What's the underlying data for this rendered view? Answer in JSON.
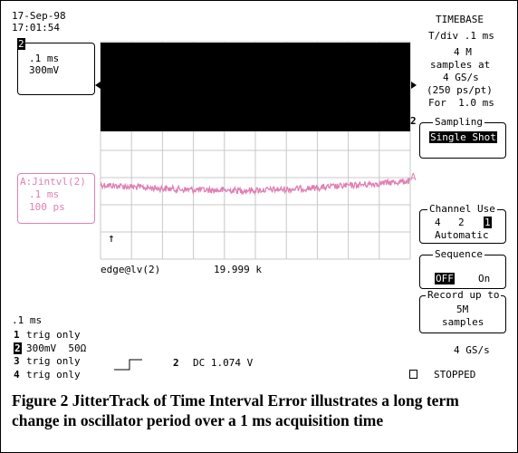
{
  "header": {
    "date": "17-Sep-98",
    "time": "17:01:54"
  },
  "channel_box": {
    "number": "2",
    "timebase": ".1 ms",
    "volts": "300mV"
  },
  "trace_box": {
    "label": "A:Jintvl(2)",
    "timebase": ".1 ms",
    "scale": "100 ps"
  },
  "trace_markers": {
    "channel_left": "2",
    "channel_right": "2",
    "trace_right": "A",
    "cursor": "↑"
  },
  "timebase": {
    "title": "TIMEBASE",
    "tdiv": "T/div .1 ms",
    "samples": "4 M",
    "samples_at": "samples at",
    "rate": "4 GS/s",
    "resolution": "(250 ps/pt)",
    "duration": "For  1.0 ms"
  },
  "sampling": {
    "title": "Sampling",
    "value": "Single Shot"
  },
  "channel_use": {
    "title": "Channel Use",
    "options": [
      "4",
      "2",
      "1"
    ],
    "mode": "Automatic"
  },
  "sequence": {
    "title": "Sequence",
    "off": "OFF",
    "on": "On"
  },
  "record": {
    "lines": [
      "Record up to",
      "5M",
      "samples"
    ]
  },
  "measurement": {
    "parameter": "edge@lv(2)",
    "value": "19.999 k"
  },
  "status": {
    "timebase": ".1 ms",
    "channels": [
      {
        "number": "1",
        "text": "trig only"
      },
      {
        "number": "2",
        "text": "300mV  50Ω"
      },
      {
        "number": "3",
        "text": "trig only"
      },
      {
        "number": "4",
        "text": "trig only"
      }
    ],
    "trigger_channel": "2",
    "trigger_level": "DC 1.074 V",
    "rate": "4 GS/s",
    "state": "STOPPED"
  },
  "caption": "Figure 2 JitterTrack of Time Interval Error illustrates a long term change in oscillator period over a 1 ms acquisition time"
}
